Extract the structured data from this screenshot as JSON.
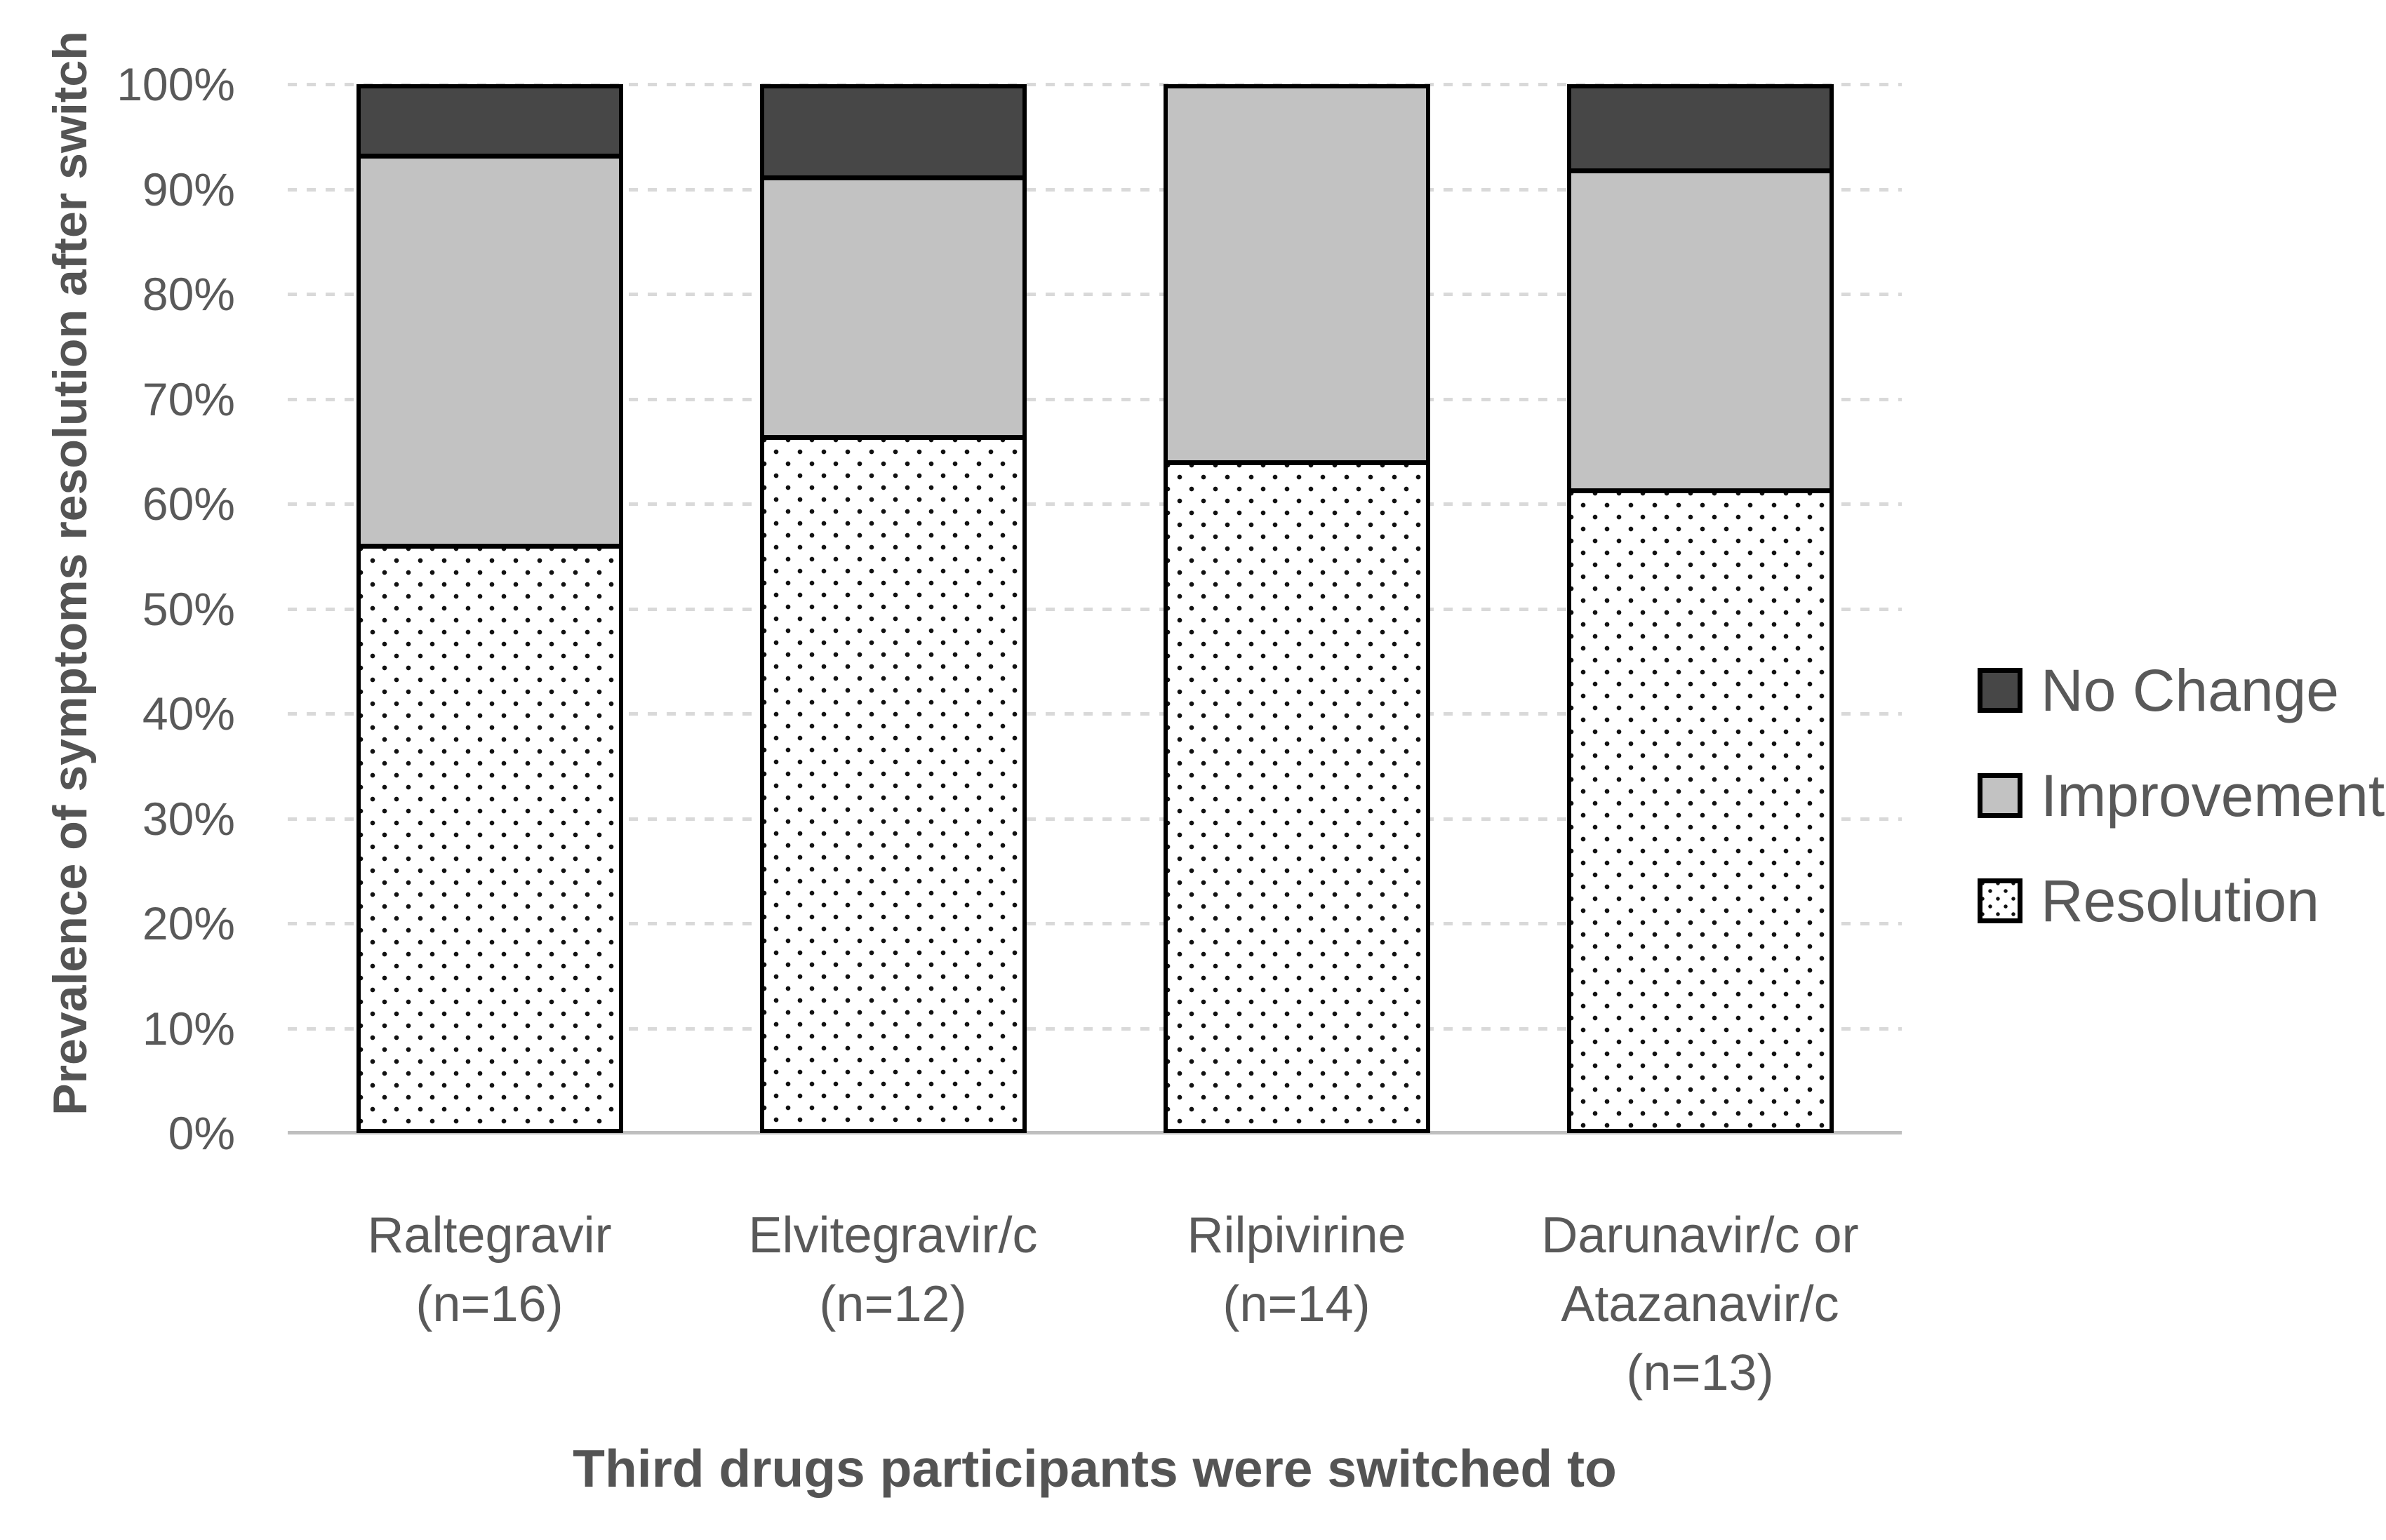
{
  "chart_data": {
    "type": "bar",
    "stacked": true,
    "orientation": "vertical",
    "title": "",
    "xlabel": "Third drugs participants were switched to",
    "ylabel": "Prevalence of symptoms resolution after switch",
    "categories": [
      "Raltegravir\n(n=16)",
      "Elvitegravir/c\n(n=12)",
      "Rilpivirine\n(n=14)",
      "Darunavir/c or\nAtazanavir/c\n(n=13)"
    ],
    "series": [
      {
        "name": "Resolution",
        "values": [
          56.25,
          66.67,
          64.29,
          61.54
        ],
        "style": "dots",
        "fill": "#ffffff",
        "dot_color": "#111111"
      },
      {
        "name": "Improvement",
        "values": [
          37.5,
          25.0,
          35.71,
          30.77
        ],
        "style": "solid",
        "fill": "#c2c2c2"
      },
      {
        "name": "No Change",
        "values": [
          6.25,
          8.33,
          0.0,
          7.69
        ],
        "style": "solid",
        "fill": "#474747"
      }
    ],
    "y_axis": {
      "min": 0,
      "max": 100,
      "unit": "%",
      "ticks": [
        "0%",
        "10%",
        "20%",
        "30%",
        "40%",
        "50%",
        "60%",
        "70%",
        "80%",
        "90%",
        "100%"
      ],
      "gridlines": "dashed"
    },
    "legend": {
      "position": "right",
      "order": [
        "No Change",
        "Improvement",
        "Resolution"
      ]
    },
    "colors": {
      "no_change": "#474747",
      "improvement": "#c2c2c2",
      "resolution_background": "#ffffff",
      "resolution_dot": "#111111",
      "segment_border": "#000000",
      "gridline": "#d9d9d9",
      "axis_line": "#bfbfbf",
      "text": "#595959"
    }
  }
}
